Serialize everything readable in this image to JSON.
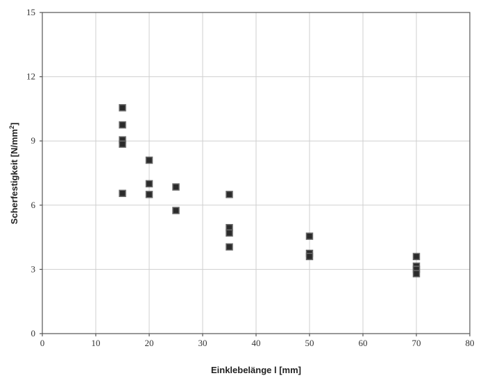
{
  "chart_data": {
    "type": "scatter",
    "title": "",
    "xlabel": "Einklebelänge l [mm]",
    "ylabel": "Scherfestigkeit [N/mm",
    "ylabel_superscript": "2",
    "ylabel_suffix": "]",
    "xlim": [
      0,
      80
    ],
    "ylim": [
      0,
      15
    ],
    "x_ticks": [
      0,
      10,
      20,
      30,
      40,
      50,
      60,
      70,
      80
    ],
    "y_ticks": [
      0,
      3,
      6,
      9,
      12,
      15
    ],
    "grid": true,
    "marker": "square",
    "marker_color": "#2b2b2b",
    "series": [
      {
        "points": [
          {
            "x": 15,
            "y": 10.55
          },
          {
            "x": 15,
            "y": 9.75
          },
          {
            "x": 15,
            "y": 9.05
          },
          {
            "x": 15,
            "y": 8.85
          },
          {
            "x": 15,
            "y": 6.55
          },
          {
            "x": 20,
            "y": 8.1
          },
          {
            "x": 20,
            "y": 7.0
          },
          {
            "x": 20,
            "y": 6.5
          },
          {
            "x": 25,
            "y": 6.85
          },
          {
            "x": 25,
            "y": 5.75
          },
          {
            "x": 35,
            "y": 6.5
          },
          {
            "x": 35,
            "y": 4.95
          },
          {
            "x": 35,
            "y": 4.7
          },
          {
            "x": 35,
            "y": 4.05
          },
          {
            "x": 50,
            "y": 4.55
          },
          {
            "x": 50,
            "y": 3.75
          },
          {
            "x": 50,
            "y": 3.6
          },
          {
            "x": 70,
            "y": 3.6
          },
          {
            "x": 70,
            "y": 3.15
          },
          {
            "x": 70,
            "y": 3.0
          },
          {
            "x": 70,
            "y": 2.8
          }
        ]
      }
    ]
  }
}
